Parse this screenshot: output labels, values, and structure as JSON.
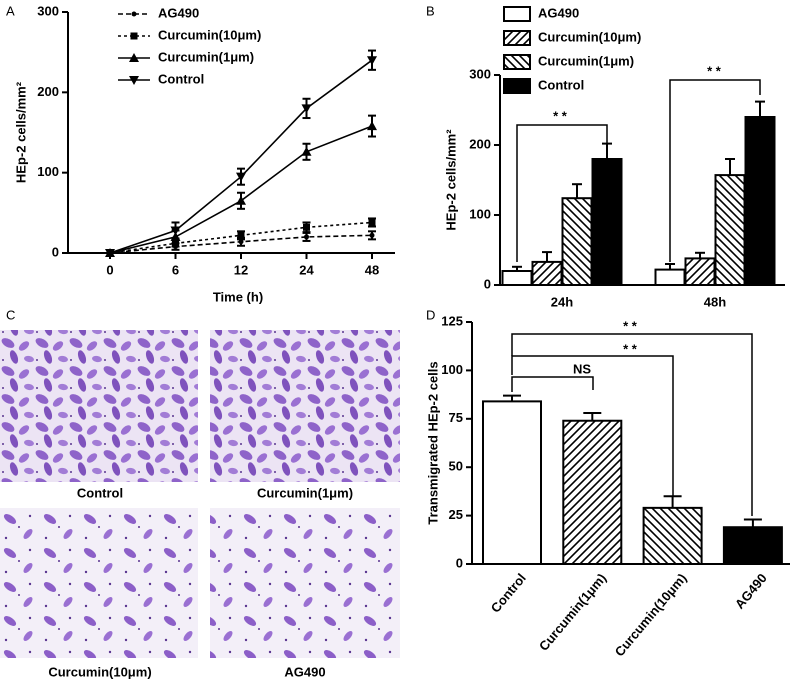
{
  "panel_labels": [
    "A",
    "B",
    "C",
    "D"
  ],
  "micrographs": {
    "captions": [
      "Control",
      "Curcumin(1μm)",
      "Curcumin(10μm)",
      "AG490"
    ]
  },
  "chart_data": [
    {
      "type": "line",
      "ylabel": "HEp-2 cells/mm²",
      "xlabel": "Time (h)",
      "categories": [
        "0",
        "6",
        "12",
        "24",
        "48"
      ],
      "ylim": [
        0,
        300
      ],
      "yticks": [
        0,
        100,
        200,
        300
      ],
      "series": [
        {
          "name": "AG490",
          "color": "#000000",
          "marker": "dot",
          "dash": "5 3",
          "values": [
            0,
            8,
            14,
            20,
            22
          ],
          "errors": [
            0,
            4,
            5,
            5,
            5
          ]
        },
        {
          "name": "Curcumin(10μm)",
          "color": "#000000",
          "marker": "square",
          "dash": "3 3",
          "values": [
            0,
            12,
            22,
            32,
            38
          ],
          "errors": [
            0,
            4,
            5,
            6,
            5
          ]
        },
        {
          "name": "Curcumin(1μm)",
          "color": "#000000",
          "marker": "triangle-up",
          "dash": "none",
          "values": [
            0,
            20,
            65,
            126,
            158
          ],
          "errors": [
            0,
            8,
            10,
            10,
            13
          ]
        },
        {
          "name": "Control",
          "color": "#000000",
          "marker": "triangle-down",
          "dash": "none",
          "values": [
            0,
            28,
            95,
            180,
            240
          ],
          "errors": [
            0,
            10,
            10,
            12,
            12
          ]
        }
      ]
    },
    {
      "type": "bar",
      "ylabel": "HEp-2 cells/mm²",
      "categories": [
        "24h",
        "48h"
      ],
      "ylim": [
        0,
        300
      ],
      "yticks": [
        0,
        100,
        200,
        300
      ],
      "series": [
        {
          "name": "AG490",
          "color": "#ffffff",
          "hatch": "none",
          "values": [
            20,
            22
          ],
          "errors": [
            6,
            8
          ]
        },
        {
          "name": "Curcumin(10μm)",
          "color": "#ffffff",
          "hatch": "diagonal-up",
          "values": [
            33,
            38
          ],
          "errors": [
            14,
            8
          ]
        },
        {
          "name": "Curcumin(1μm)",
          "color": "#ffffff",
          "hatch": "diagonal-down",
          "values": [
            124,
            157
          ],
          "errors": [
            20,
            23
          ]
        },
        {
          "name": "Control",
          "color": "#000000",
          "hatch": "none",
          "values": [
            180,
            240
          ],
          "errors": [
            22,
            22
          ]
        }
      ],
      "annotations": [
        "* *",
        "* *"
      ]
    },
    {
      "type": "bar",
      "ylabel": "Transmigrated HEp-2 cells",
      "categories": [
        "Control",
        "Curcumin(1μm)",
        "Curcumin(10μm)",
        "AG490"
      ],
      "values": [
        84,
        74,
        29,
        19
      ],
      "errors": [
        3,
        4,
        6,
        4
      ],
      "colors": [
        "#ffffff",
        "#ffffff",
        "#ffffff",
        "#000000"
      ],
      "hatches": [
        "none",
        "diagonal-up",
        "diagonal-down",
        "none"
      ],
      "ylim": [
        0,
        125
      ],
      "yticks": [
        0,
        25,
        50,
        75,
        100,
        125
      ],
      "annotations": [
        "NS",
        "* *",
        "* *"
      ]
    }
  ]
}
